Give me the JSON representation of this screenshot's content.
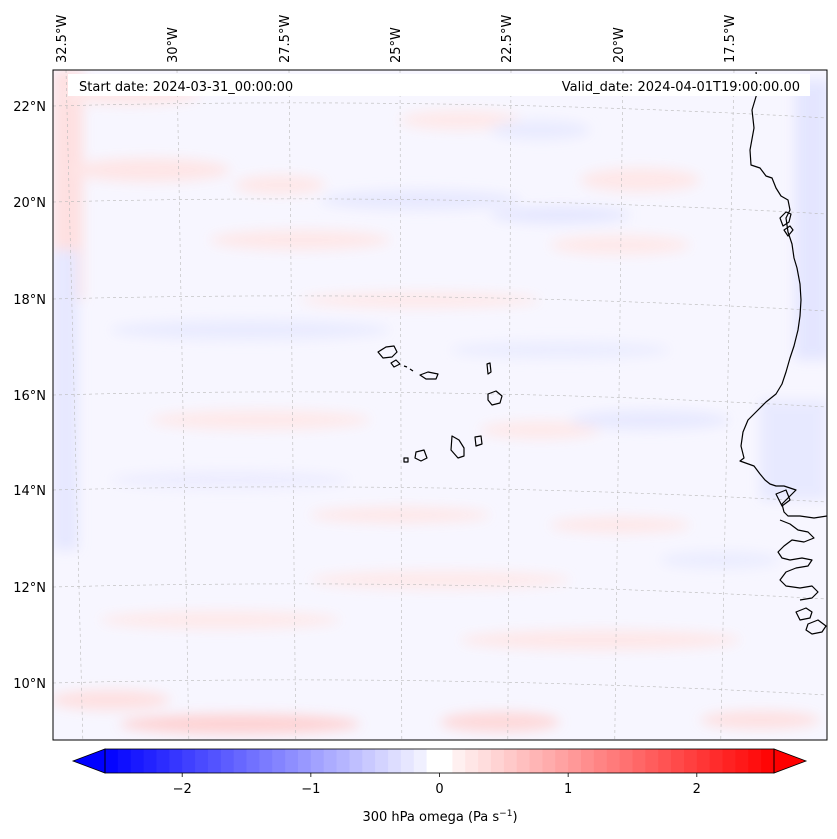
{
  "map": {
    "start_date": "Start date: 2024-03-31_00:00:00",
    "valid_date": "Valid_date: 2024-04-01T19:00:00.00",
    "lon_labels": [
      "32.5°W",
      "30°W",
      "27.5°W",
      "25°W",
      "22.5°W",
      "20°W",
      "17.5°W"
    ],
    "lat_labels": [
      "22°N",
      "20°N",
      "18°N",
      "16°N",
      "14°N",
      "12°N",
      "10°N"
    ],
    "colors": {
      "positive": "#ff0000",
      "negative": "#0000ff",
      "neutral": "#ffffff",
      "coastline": "#000000",
      "gridline": "#b0b0b0"
    }
  },
  "colorbar": {
    "label_main": "300 hPa omega (Pa s",
    "label_exp": "−1",
    "label_close": ")",
    "ticks": [
      "−2",
      "−1",
      "0",
      "1",
      "2"
    ],
    "range": [
      -2.6,
      2.6
    ]
  }
}
